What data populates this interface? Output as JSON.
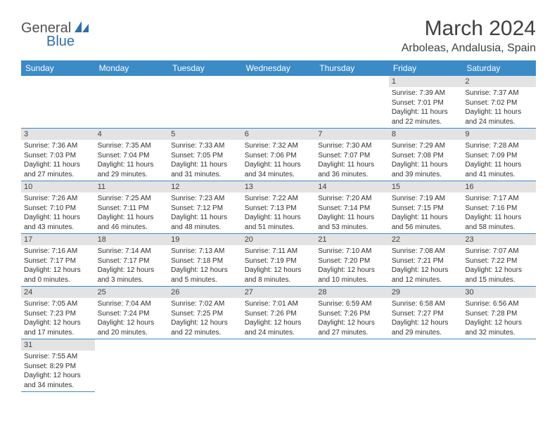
{
  "logo": {
    "general": "General",
    "blue": "Blue"
  },
  "title": {
    "month": "March 2024",
    "location": "Arboleas, Andalusia, Spain"
  },
  "colors": {
    "header_bg": "#3b8bc7",
    "header_fg": "#ffffff",
    "daynum_bg": "#e3e3e3",
    "cell_border": "#3b8bc7",
    "text": "#303030"
  },
  "day_headers": [
    "Sunday",
    "Monday",
    "Tuesday",
    "Wednesday",
    "Thursday",
    "Friday",
    "Saturday"
  ],
  "weeks": [
    [
      null,
      null,
      null,
      null,
      null,
      {
        "n": "1",
        "sunrise": "7:39 AM",
        "sunset": "7:01 PM",
        "daylight": "11 hours and 22 minutes."
      },
      {
        "n": "2",
        "sunrise": "7:37 AM",
        "sunset": "7:02 PM",
        "daylight": "11 hours and 24 minutes."
      }
    ],
    [
      {
        "n": "3",
        "sunrise": "7:36 AM",
        "sunset": "7:03 PM",
        "daylight": "11 hours and 27 minutes."
      },
      {
        "n": "4",
        "sunrise": "7:35 AM",
        "sunset": "7:04 PM",
        "daylight": "11 hours and 29 minutes."
      },
      {
        "n": "5",
        "sunrise": "7:33 AM",
        "sunset": "7:05 PM",
        "daylight": "11 hours and 31 minutes."
      },
      {
        "n": "6",
        "sunrise": "7:32 AM",
        "sunset": "7:06 PM",
        "daylight": "11 hours and 34 minutes."
      },
      {
        "n": "7",
        "sunrise": "7:30 AM",
        "sunset": "7:07 PM",
        "daylight": "11 hours and 36 minutes."
      },
      {
        "n": "8",
        "sunrise": "7:29 AM",
        "sunset": "7:08 PM",
        "daylight": "11 hours and 39 minutes."
      },
      {
        "n": "9",
        "sunrise": "7:28 AM",
        "sunset": "7:09 PM",
        "daylight": "11 hours and 41 minutes."
      }
    ],
    [
      {
        "n": "10",
        "sunrise": "7:26 AM",
        "sunset": "7:10 PM",
        "daylight": "11 hours and 43 minutes."
      },
      {
        "n": "11",
        "sunrise": "7:25 AM",
        "sunset": "7:11 PM",
        "daylight": "11 hours and 46 minutes."
      },
      {
        "n": "12",
        "sunrise": "7:23 AM",
        "sunset": "7:12 PM",
        "daylight": "11 hours and 48 minutes."
      },
      {
        "n": "13",
        "sunrise": "7:22 AM",
        "sunset": "7:13 PM",
        "daylight": "11 hours and 51 minutes."
      },
      {
        "n": "14",
        "sunrise": "7:20 AM",
        "sunset": "7:14 PM",
        "daylight": "11 hours and 53 minutes."
      },
      {
        "n": "15",
        "sunrise": "7:19 AM",
        "sunset": "7:15 PM",
        "daylight": "11 hours and 56 minutes."
      },
      {
        "n": "16",
        "sunrise": "7:17 AM",
        "sunset": "7:16 PM",
        "daylight": "11 hours and 58 minutes."
      }
    ],
    [
      {
        "n": "17",
        "sunrise": "7:16 AM",
        "sunset": "7:17 PM",
        "daylight": "12 hours and 0 minutes."
      },
      {
        "n": "18",
        "sunrise": "7:14 AM",
        "sunset": "7:17 PM",
        "daylight": "12 hours and 3 minutes."
      },
      {
        "n": "19",
        "sunrise": "7:13 AM",
        "sunset": "7:18 PM",
        "daylight": "12 hours and 5 minutes."
      },
      {
        "n": "20",
        "sunrise": "7:11 AM",
        "sunset": "7:19 PM",
        "daylight": "12 hours and 8 minutes."
      },
      {
        "n": "21",
        "sunrise": "7:10 AM",
        "sunset": "7:20 PM",
        "daylight": "12 hours and 10 minutes."
      },
      {
        "n": "22",
        "sunrise": "7:08 AM",
        "sunset": "7:21 PM",
        "daylight": "12 hours and 12 minutes."
      },
      {
        "n": "23",
        "sunrise": "7:07 AM",
        "sunset": "7:22 PM",
        "daylight": "12 hours and 15 minutes."
      }
    ],
    [
      {
        "n": "24",
        "sunrise": "7:05 AM",
        "sunset": "7:23 PM",
        "daylight": "12 hours and 17 minutes."
      },
      {
        "n": "25",
        "sunrise": "7:04 AM",
        "sunset": "7:24 PM",
        "daylight": "12 hours and 20 minutes."
      },
      {
        "n": "26",
        "sunrise": "7:02 AM",
        "sunset": "7:25 PM",
        "daylight": "12 hours and 22 minutes."
      },
      {
        "n": "27",
        "sunrise": "7:01 AM",
        "sunset": "7:26 PM",
        "daylight": "12 hours and 24 minutes."
      },
      {
        "n": "28",
        "sunrise": "6:59 AM",
        "sunset": "7:26 PM",
        "daylight": "12 hours and 27 minutes."
      },
      {
        "n": "29",
        "sunrise": "6:58 AM",
        "sunset": "7:27 PM",
        "daylight": "12 hours and 29 minutes."
      },
      {
        "n": "30",
        "sunrise": "6:56 AM",
        "sunset": "7:28 PM",
        "daylight": "12 hours and 32 minutes."
      }
    ],
    [
      {
        "n": "31",
        "sunrise": "7:55 AM",
        "sunset": "8:29 PM",
        "daylight": "12 hours and 34 minutes."
      },
      null,
      null,
      null,
      null,
      null,
      null
    ]
  ],
  "labels": {
    "sunrise": "Sunrise:",
    "sunset": "Sunset:",
    "daylight": "Daylight:"
  }
}
